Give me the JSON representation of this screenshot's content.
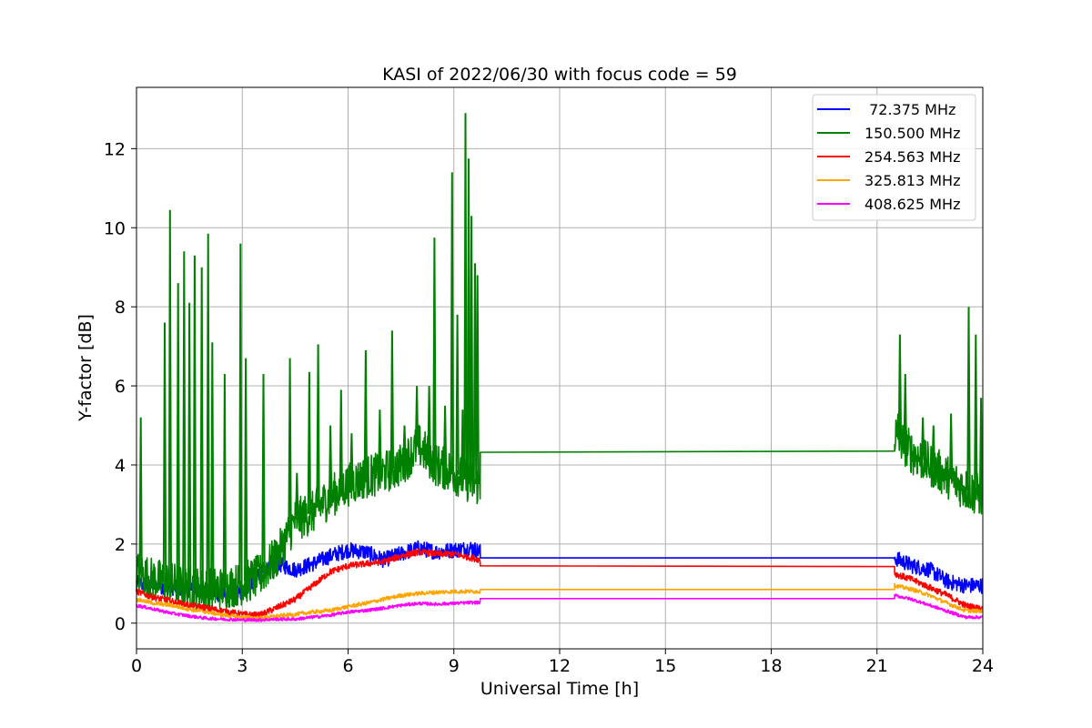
{
  "chart_data": {
    "type": "line",
    "title": "KASI of 2022/06/30 with focus code = 59",
    "xlabel": "Universal Time [h]",
    "ylabel": "Y-factor [dB]",
    "xlim": [
      0,
      24
    ],
    "ylim": [
      -0.65,
      13.55
    ],
    "xticks": [
      0,
      3,
      6,
      9,
      12,
      15,
      18,
      21,
      24
    ],
    "yticks": [
      0,
      2,
      4,
      6,
      8,
      10,
      12
    ],
    "grid": true,
    "legend_position": "top-right",
    "data_gap_hours": [
      9.75,
      21.5
    ],
    "series": [
      {
        "name": " 72.375 MHz",
        "color": "#0000ff",
        "points": [
          [
            0,
            1.0
          ],
          [
            0.5,
            0.95
          ],
          [
            1,
            0.9
          ],
          [
            1.5,
            0.85
          ],
          [
            2,
            0.8
          ],
          [
            2.5,
            0.7
          ],
          [
            3,
            0.75
          ],
          [
            3.5,
            1.3
          ],
          [
            4,
            1.5
          ],
          [
            4.5,
            1.35
          ],
          [
            5,
            1.5
          ],
          [
            5.5,
            1.7
          ],
          [
            6,
            1.85
          ],
          [
            6.5,
            1.8
          ],
          [
            7,
            1.6
          ],
          [
            7.5,
            1.75
          ],
          [
            8,
            1.9
          ],
          [
            8.5,
            1.8
          ],
          [
            9,
            1.85
          ],
          [
            9.5,
            1.9
          ],
          [
            9.75,
            1.8
          ],
          [
            21.5,
            1.65
          ],
          [
            22,
            1.45
          ],
          [
            22.5,
            1.35
          ],
          [
            23,
            1.05
          ],
          [
            23.5,
            0.95
          ],
          [
            24,
            0.95
          ]
        ],
        "noise": 0.2,
        "hold_value": 1.65
      },
      {
        "name": "150.500 MHz",
        "color": "#008000",
        "points": [
          [
            0,
            1.3
          ],
          [
            0.5,
            1.1
          ],
          [
            1,
            1.0
          ],
          [
            1.5,
            0.9
          ],
          [
            2,
            0.85
          ],
          [
            2.5,
            0.9
          ],
          [
            3,
            1.0
          ],
          [
            3.5,
            1.2
          ],
          [
            4,
            1.7
          ],
          [
            4.5,
            2.6
          ],
          [
            5,
            2.8
          ],
          [
            5.5,
            3.2
          ],
          [
            6,
            3.5
          ],
          [
            6.5,
            3.7
          ],
          [
            7,
            3.8
          ],
          [
            7.5,
            4.0
          ],
          [
            8,
            4.5
          ],
          [
            8.5,
            4.0
          ],
          [
            9,
            3.8
          ],
          [
            9.5,
            3.55
          ],
          [
            9.75,
            3.5
          ],
          [
            21.5,
            4.8
          ],
          [
            22,
            4.3
          ],
          [
            22.5,
            4.0
          ],
          [
            23,
            3.7
          ],
          [
            23.5,
            3.4
          ],
          [
            24,
            3.2
          ]
        ],
        "noise": 0.55,
        "hold_value": 4.32,
        "hold_end_value": 4.35,
        "spikes": [
          [
            0.12,
            5.2
          ],
          [
            0.8,
            7.6
          ],
          [
            0.95,
            10.45
          ],
          [
            1.18,
            8.6
          ],
          [
            1.35,
            9.4
          ],
          [
            1.5,
            8.1
          ],
          [
            1.65,
            9.3
          ],
          [
            1.85,
            9.0
          ],
          [
            2.03,
            9.85
          ],
          [
            2.15,
            7.1
          ],
          [
            2.5,
            6.3
          ],
          [
            2.95,
            9.6
          ],
          [
            3.1,
            6.7
          ],
          [
            3.6,
            6.3
          ],
          [
            4.35,
            6.7
          ],
          [
            4.55,
            3.8
          ],
          [
            4.9,
            6.35
          ],
          [
            5.15,
            7.05
          ],
          [
            5.5,
            5.0
          ],
          [
            5.8,
            5.9
          ],
          [
            6.1,
            4.8
          ],
          [
            6.5,
            6.9
          ],
          [
            6.9,
            5.4
          ],
          [
            7.25,
            7.4
          ],
          [
            7.6,
            5.0
          ],
          [
            7.95,
            6.0
          ],
          [
            8.3,
            6.0
          ],
          [
            8.45,
            9.75
          ],
          [
            8.75,
            5.5
          ],
          [
            8.95,
            11.4
          ],
          [
            9.1,
            7.8
          ],
          [
            9.25,
            5.4
          ],
          [
            9.33,
            12.9
          ],
          [
            9.42,
            11.75
          ],
          [
            9.5,
            10.3
          ],
          [
            9.6,
            9.1
          ],
          [
            9.67,
            8.8
          ],
          [
            21.6,
            5.3
          ],
          [
            21.65,
            7.3
          ],
          [
            21.8,
            6.3
          ],
          [
            22.3,
            5.2
          ],
          [
            22.6,
            5.0
          ],
          [
            23.1,
            5.3
          ],
          [
            23.6,
            8.0
          ],
          [
            23.8,
            7.3
          ],
          [
            23.95,
            5.7
          ]
        ]
      },
      {
        "name": "254.563 MHz",
        "color": "#ff0000",
        "points": [
          [
            0,
            0.8
          ],
          [
            0.5,
            0.65
          ],
          [
            1,
            0.55
          ],
          [
            1.5,
            0.45
          ],
          [
            2,
            0.38
          ],
          [
            2.5,
            0.3
          ],
          [
            3,
            0.22
          ],
          [
            3.5,
            0.2
          ],
          [
            4,
            0.4
          ],
          [
            4.5,
            0.6
          ],
          [
            5,
            0.95
          ],
          [
            5.5,
            1.3
          ],
          [
            6,
            1.45
          ],
          [
            6.5,
            1.5
          ],
          [
            7,
            1.55
          ],
          [
            7.5,
            1.7
          ],
          [
            8,
            1.8
          ],
          [
            8.5,
            1.75
          ],
          [
            9,
            1.75
          ],
          [
            9.5,
            1.65
          ],
          [
            9.75,
            1.6
          ],
          [
            21.5,
            1.25
          ],
          [
            22,
            1.1
          ],
          [
            22.5,
            0.9
          ],
          [
            23,
            0.7
          ],
          [
            23.5,
            0.45
          ],
          [
            24,
            0.35
          ]
        ],
        "noise": 0.08,
        "hold_value": 1.45,
        "hold_end_value": 1.43
      },
      {
        "name": "325.813 MHz",
        "color": "#ffa500",
        "points": [
          [
            0,
            0.6
          ],
          [
            0.5,
            0.5
          ],
          [
            1,
            0.45
          ],
          [
            1.5,
            0.35
          ],
          [
            2,
            0.28
          ],
          [
            2.5,
            0.2
          ],
          [
            3,
            0.15
          ],
          [
            3.5,
            0.13
          ],
          [
            4,
            0.18
          ],
          [
            4.5,
            0.22
          ],
          [
            5,
            0.28
          ],
          [
            5.5,
            0.32
          ],
          [
            6,
            0.42
          ],
          [
            6.5,
            0.5
          ],
          [
            7,
            0.6
          ],
          [
            7.5,
            0.7
          ],
          [
            8,
            0.75
          ],
          [
            8.5,
            0.78
          ],
          [
            9,
            0.8
          ],
          [
            9.5,
            0.8
          ],
          [
            9.75,
            0.8
          ],
          [
            21.5,
            0.95
          ],
          [
            22,
            0.85
          ],
          [
            22.5,
            0.7
          ],
          [
            23,
            0.5
          ],
          [
            23.5,
            0.32
          ],
          [
            24,
            0.3
          ]
        ],
        "noise": 0.05,
        "hold_value": 0.85
      },
      {
        "name": "408.625 MHz",
        "color": "#ff00ff",
        "points": [
          [
            0,
            0.45
          ],
          [
            0.5,
            0.35
          ],
          [
            1,
            0.25
          ],
          [
            1.5,
            0.18
          ],
          [
            2,
            0.12
          ],
          [
            2.5,
            0.1
          ],
          [
            3,
            0.08
          ],
          [
            3.5,
            0.08
          ],
          [
            4,
            0.1
          ],
          [
            4.5,
            0.1
          ],
          [
            5,
            0.15
          ],
          [
            5.5,
            0.2
          ],
          [
            6,
            0.28
          ],
          [
            6.5,
            0.32
          ],
          [
            7,
            0.38
          ],
          [
            7.5,
            0.45
          ],
          [
            8,
            0.5
          ],
          [
            8.5,
            0.48
          ],
          [
            9,
            0.5
          ],
          [
            9.5,
            0.52
          ],
          [
            9.75,
            0.52
          ],
          [
            21.5,
            0.7
          ],
          [
            22,
            0.6
          ],
          [
            22.5,
            0.45
          ],
          [
            23,
            0.3
          ],
          [
            23.5,
            0.15
          ],
          [
            24,
            0.15
          ]
        ],
        "noise": 0.04,
        "hold_value": 0.62
      }
    ]
  }
}
